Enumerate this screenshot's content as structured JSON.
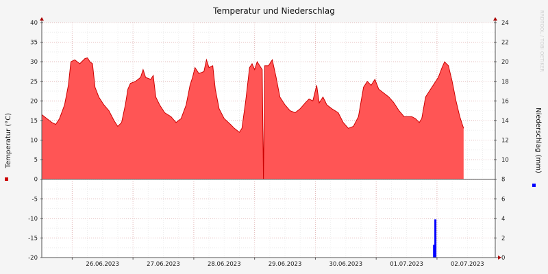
{
  "chart_data": {
    "type": "area",
    "title": "Temperatur und Niederschlag",
    "watermark": "RRDTOOL / TOBI OETIKER",
    "xlabels": [
      "26.06.2023",
      "27.06.2023",
      "28.06.2023",
      "29.06.2023",
      "30.06.2023",
      "01.07.2023",
      "02.07.2023"
    ],
    "x_start": "25.06.2023 12:00",
    "x_end": "02.07.2023 23:00",
    "y_left": {
      "label": "Temperatur (°C)",
      "min": -20,
      "max": 40,
      "step": 5,
      "ticks": [
        "40",
        "35",
        "30",
        "25",
        "20",
        "15",
        "10",
        "5",
        "0",
        "-5",
        "-10",
        "-15",
        "-20"
      ]
    },
    "y_right": {
      "label": "Niederschlag (mm)",
      "min": 0,
      "max": 24,
      "step": 2,
      "ticks": [
        "24",
        "22",
        "20",
        "18",
        "16",
        "14",
        "12",
        "10",
        "8",
        "6",
        "4",
        "2",
        "0"
      ]
    },
    "series": [
      {
        "name": "Temperatur (°C)",
        "color": "#ff5555",
        "line_color": "#cc0000",
        "points": [
          [
            "25.06.2023 12:00",
            16.5
          ],
          [
            "25.06.2023 14:00",
            15.5
          ],
          [
            "25.06.2023 16:00",
            14.5
          ],
          [
            "25.06.2023 17:30",
            14.0
          ],
          [
            "25.06.2023 19:00",
            15.5
          ],
          [
            "25.06.2023 21:00",
            19.0
          ],
          [
            "25.06.2023 22:30",
            24.0
          ],
          [
            "25.06.2023 23:30",
            30.0
          ],
          [
            "26.06.2023 01:00",
            30.5
          ],
          [
            "26.06.2023 03:00",
            29.5
          ],
          [
            "26.06.2023 05:00",
            30.8
          ],
          [
            "26.06.2023 06:00",
            31.0
          ],
          [
            "26.06.2023 07:00",
            30.0
          ],
          [
            "26.06.2023 08:00",
            29.5
          ],
          [
            "26.06.2023 09:00",
            23.5
          ],
          [
            "26.06.2023 10:30",
            21.0
          ],
          [
            "26.06.2023 12:30",
            19.0
          ],
          [
            "26.06.2023 14:30",
            17.5
          ],
          [
            "26.06.2023 16:30",
            15.0
          ],
          [
            "26.06.2023 18:00",
            13.5
          ],
          [
            "26.06.2023 19:30",
            14.5
          ],
          [
            "26.06.2023 21:00",
            19.0
          ],
          [
            "26.06.2023 22:00",
            23.0
          ],
          [
            "26.06.2023 23:00",
            24.5
          ],
          [
            "27.06.2023 01:00",
            25.0
          ],
          [
            "27.06.2023 03:00",
            26.0
          ],
          [
            "27.06.2023 04:00",
            28.0
          ],
          [
            "27.06.2023 05:00",
            26.0
          ],
          [
            "27.06.2023 07:00",
            25.5
          ],
          [
            "27.06.2023 08:00",
            26.5
          ],
          [
            "27.06.2023 09:00",
            21.0
          ],
          [
            "27.06.2023 10:30",
            19.0
          ],
          [
            "27.06.2023 12:30",
            17.0
          ],
          [
            "27.06.2023 15:00",
            16.0
          ],
          [
            "27.06.2023 17:00",
            14.5
          ],
          [
            "27.06.2023 19:00",
            15.5
          ],
          [
            "27.06.2023 21:00",
            19.0
          ],
          [
            "27.06.2023 22:30",
            24.0
          ],
          [
            "27.06.2023 23:30",
            26.0
          ],
          [
            "28.06.2023 00:30",
            28.5
          ],
          [
            "28.06.2023 02:00",
            27.0
          ],
          [
            "28.06.2023 04:00",
            27.5
          ],
          [
            "28.06.2023 05:00",
            30.5
          ],
          [
            "28.06.2023 06:00",
            28.5
          ],
          [
            "28.06.2023 07:30",
            29.0
          ],
          [
            "28.06.2023 08:30",
            23.0
          ],
          [
            "28.06.2023 10:00",
            18.0
          ],
          [
            "28.06.2023 12:00",
            15.5
          ],
          [
            "28.06.2023 14:30",
            14.0
          ],
          [
            "28.06.2023 16:00",
            13.0
          ],
          [
            "28.06.2023 18:00",
            12.0
          ],
          [
            "28.06.2023 19:00",
            13.0
          ],
          [
            "28.06.2023 20:30",
            20.0
          ],
          [
            "28.06.2023 22:00",
            28.5
          ],
          [
            "28.06.2023 23:00",
            29.5
          ],
          [
            "29.06.2023 00:00",
            28.0
          ],
          [
            "29.06.2023 01:00",
            30.0
          ],
          [
            "29.06.2023 02:00",
            29.0
          ],
          [
            "29.06.2023 03:00",
            28.0
          ],
          [
            "29.06.2023 03:30",
            0.0
          ],
          [
            "29.06.2023 04:00",
            29.0
          ],
          [
            "29.06.2023 05:30",
            29.0
          ],
          [
            "29.06.2023 07:00",
            30.5
          ],
          [
            "29.06.2023 08:30",
            26.0
          ],
          [
            "29.06.2023 10:00",
            21.0
          ],
          [
            "29.06.2023 12:00",
            19.0
          ],
          [
            "29.06.2023 14:00",
            17.5
          ],
          [
            "29.06.2023 16:00",
            17.0
          ],
          [
            "29.06.2023 18:00",
            18.0
          ],
          [
            "29.06.2023 20:00",
            19.5
          ],
          [
            "29.06.2023 21:30",
            20.5
          ],
          [
            "29.06.2023 23:00",
            20.0
          ],
          [
            "30.06.2023 00:30",
            24.0
          ],
          [
            "30.06.2023 01:30",
            19.5
          ],
          [
            "30.06.2023 03:00",
            21.0
          ],
          [
            "30.06.2023 04:30",
            19.0
          ],
          [
            "30.06.2023 06:30",
            18.0
          ],
          [
            "30.06.2023 09:00",
            17.0
          ],
          [
            "30.06.2023 11:00",
            14.5
          ],
          [
            "30.06.2023 13:00",
            13.0
          ],
          [
            "30.06.2023 15:00",
            13.5
          ],
          [
            "30.06.2023 17:00",
            16.0
          ],
          [
            "30.06.2023 19:00",
            23.5
          ],
          [
            "30.06.2023 20:30",
            25.0
          ],
          [
            "30.06.2023 22:00",
            24.0
          ],
          [
            "30.06.2023 23:30",
            25.5
          ],
          [
            "01.07.2023 01:00",
            23.0
          ],
          [
            "01.07.2023 03:00",
            22.0
          ],
          [
            "01.07.2023 05:00",
            21.0
          ],
          [
            "01.07.2023 07:00",
            19.5
          ],
          [
            "01.07.2023 09:00",
            17.5
          ],
          [
            "01.07.2023 11:00",
            16.0
          ],
          [
            "01.07.2023 14:00",
            16.0
          ],
          [
            "01.07.2023 15:30",
            15.5
          ],
          [
            "01.07.2023 17:00",
            14.5
          ],
          [
            "01.07.2023 18:00",
            15.5
          ],
          [
            "01.07.2023 19:30",
            21.0
          ],
          [
            "01.07.2023 21:00",
            22.5
          ],
          [
            "01.07.2023 23:00",
            24.5
          ],
          [
            "02.07.2023 00:30",
            26.0
          ],
          [
            "02.07.2023 02:00",
            28.5
          ],
          [
            "02.07.2023 03:00",
            30.0
          ],
          [
            "02.07.2023 04:30",
            29.0
          ],
          [
            "02.07.2023 06:00",
            25.0
          ],
          [
            "02.07.2023 07:30",
            20.0
          ],
          [
            "02.07.2023 09:00",
            16.0
          ],
          [
            "02.07.2023 10:00",
            14.0
          ],
          [
            "02.07.2023 10:30",
            13.0
          ]
        ]
      },
      {
        "name": "Niederschlag (mm)",
        "color": "#0000ff",
        "bars": [
          [
            "01.07.2023 23:00",
            1.3
          ],
          [
            "01.07.2023 23:30",
            3.9
          ]
        ]
      }
    ],
    "grid": true
  }
}
